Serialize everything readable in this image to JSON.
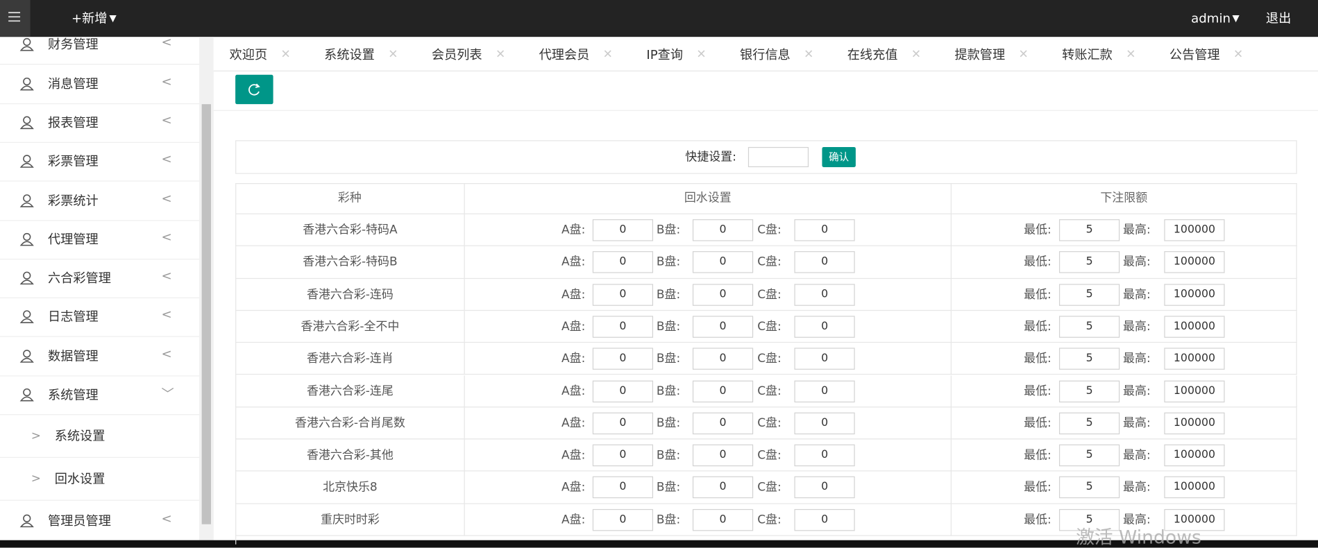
{
  "header": {
    "menu_new": "+新增",
    "user": "admin",
    "logout": "退出"
  },
  "sidebar": {
    "items": [
      "财务管理",
      "消息管理",
      "报表管理",
      "彩票管理",
      "彩票统计",
      "代理管理",
      "六合彩管理",
      "日志管理",
      "数据管理",
      "系统管理"
    ],
    "sub_items": [
      "系统设置",
      "回水设置"
    ],
    "last_item": "管理员管理"
  },
  "tabs": [
    "欢迎页",
    "系统设置",
    "会员列表",
    "代理会员",
    "IP查询",
    "银行信息",
    "在线充值",
    "提款管理",
    "转账汇款",
    "公告管理"
  ],
  "quick_settings": {
    "label": "快捷设置:",
    "button": "确认"
  },
  "table": {
    "headers": [
      "彩种",
      "回水设置",
      "下注限额"
    ],
    "labels": {
      "a": "A盘:",
      "b": "B盘:",
      "c": "C盘:",
      "min": "最低:",
      "max": "最高:"
    },
    "rows": [
      {
        "name": "香港六合彩-特码A",
        "a": 0,
        "b": 0,
        "c": 0,
        "min": 5,
        "max": 100000
      },
      {
        "name": "香港六合彩-特码B",
        "a": 0,
        "b": 0,
        "c": 0,
        "min": 5,
        "max": 100000
      },
      {
        "name": "香港六合彩-连码",
        "a": 0,
        "b": 0,
        "c": 0,
        "min": 5,
        "max": 100000
      },
      {
        "name": "香港六合彩-全不中",
        "a": 0,
        "b": 0,
        "c": 0,
        "min": 5,
        "max": 100000
      },
      {
        "name": "香港六合彩-连肖",
        "a": 0,
        "b": 0,
        "c": 0,
        "min": 5,
        "max": 100000
      },
      {
        "name": "香港六合彩-连尾",
        "a": 0,
        "b": 0,
        "c": 0,
        "min": 5,
        "max": 100000
      },
      {
        "name": "香港六合彩-合肖尾数",
        "a": 0,
        "b": 0,
        "c": 0,
        "min": 5,
        "max": 100000
      },
      {
        "name": "香港六合彩-其他",
        "a": 0,
        "b": 0,
        "c": 0,
        "min": 5,
        "max": 100000
      },
      {
        "name": "北京快乐8",
        "a": 0,
        "b": 0,
        "c": 0,
        "min": 5,
        "max": 100000
      },
      {
        "name": "重庆时时彩",
        "a": 0,
        "b": 0,
        "c": 0,
        "min": 5,
        "max": 100000
      }
    ]
  },
  "watermark": "激活 Windows"
}
